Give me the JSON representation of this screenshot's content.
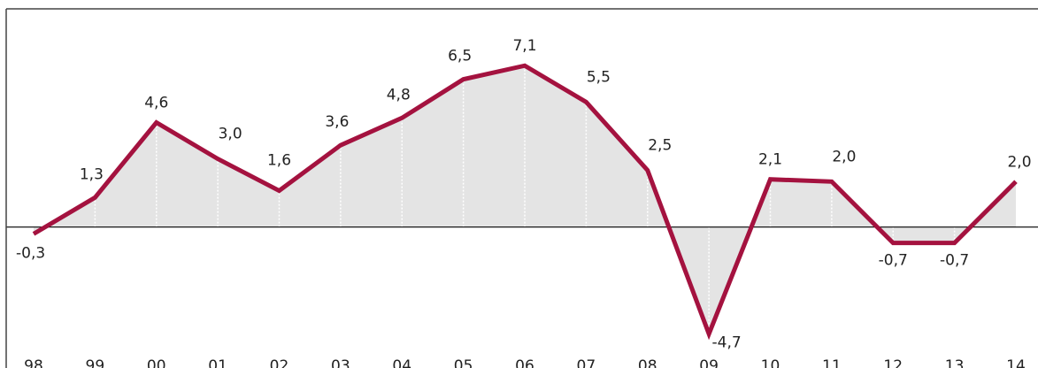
{
  "chart_data": {
    "type": "line",
    "categories": [
      "98",
      "99",
      "00",
      "01",
      "02",
      "03",
      "04",
      "05",
      "06",
      "07",
      "08",
      "09",
      "10",
      "11",
      "12",
      "13",
      "14"
    ],
    "series": [
      {
        "color": "#a4123f",
        "values": [
          -0.3,
          1.3,
          4.6,
          3.0,
          1.6,
          3.6,
          4.8,
          6.5,
          7.1,
          5.5,
          2.5,
          -4.7,
          2.1,
          2.0,
          -0.7,
          -0.7,
          2.0
        ],
        "value_labels": [
          "-0,3",
          "1,3",
          "4,6",
          "3,0",
          "1,6",
          "3,6",
          "4,8",
          "6,5",
          "7,1",
          "5,5",
          "2,5",
          "-4,7",
          "2,1",
          "2,0",
          "-0,7",
          "-0,7",
          "2,0"
        ]
      }
    ],
    "ylim": [
      -6.2,
      9.6
    ],
    "area_color": "#e4e4e4"
  }
}
